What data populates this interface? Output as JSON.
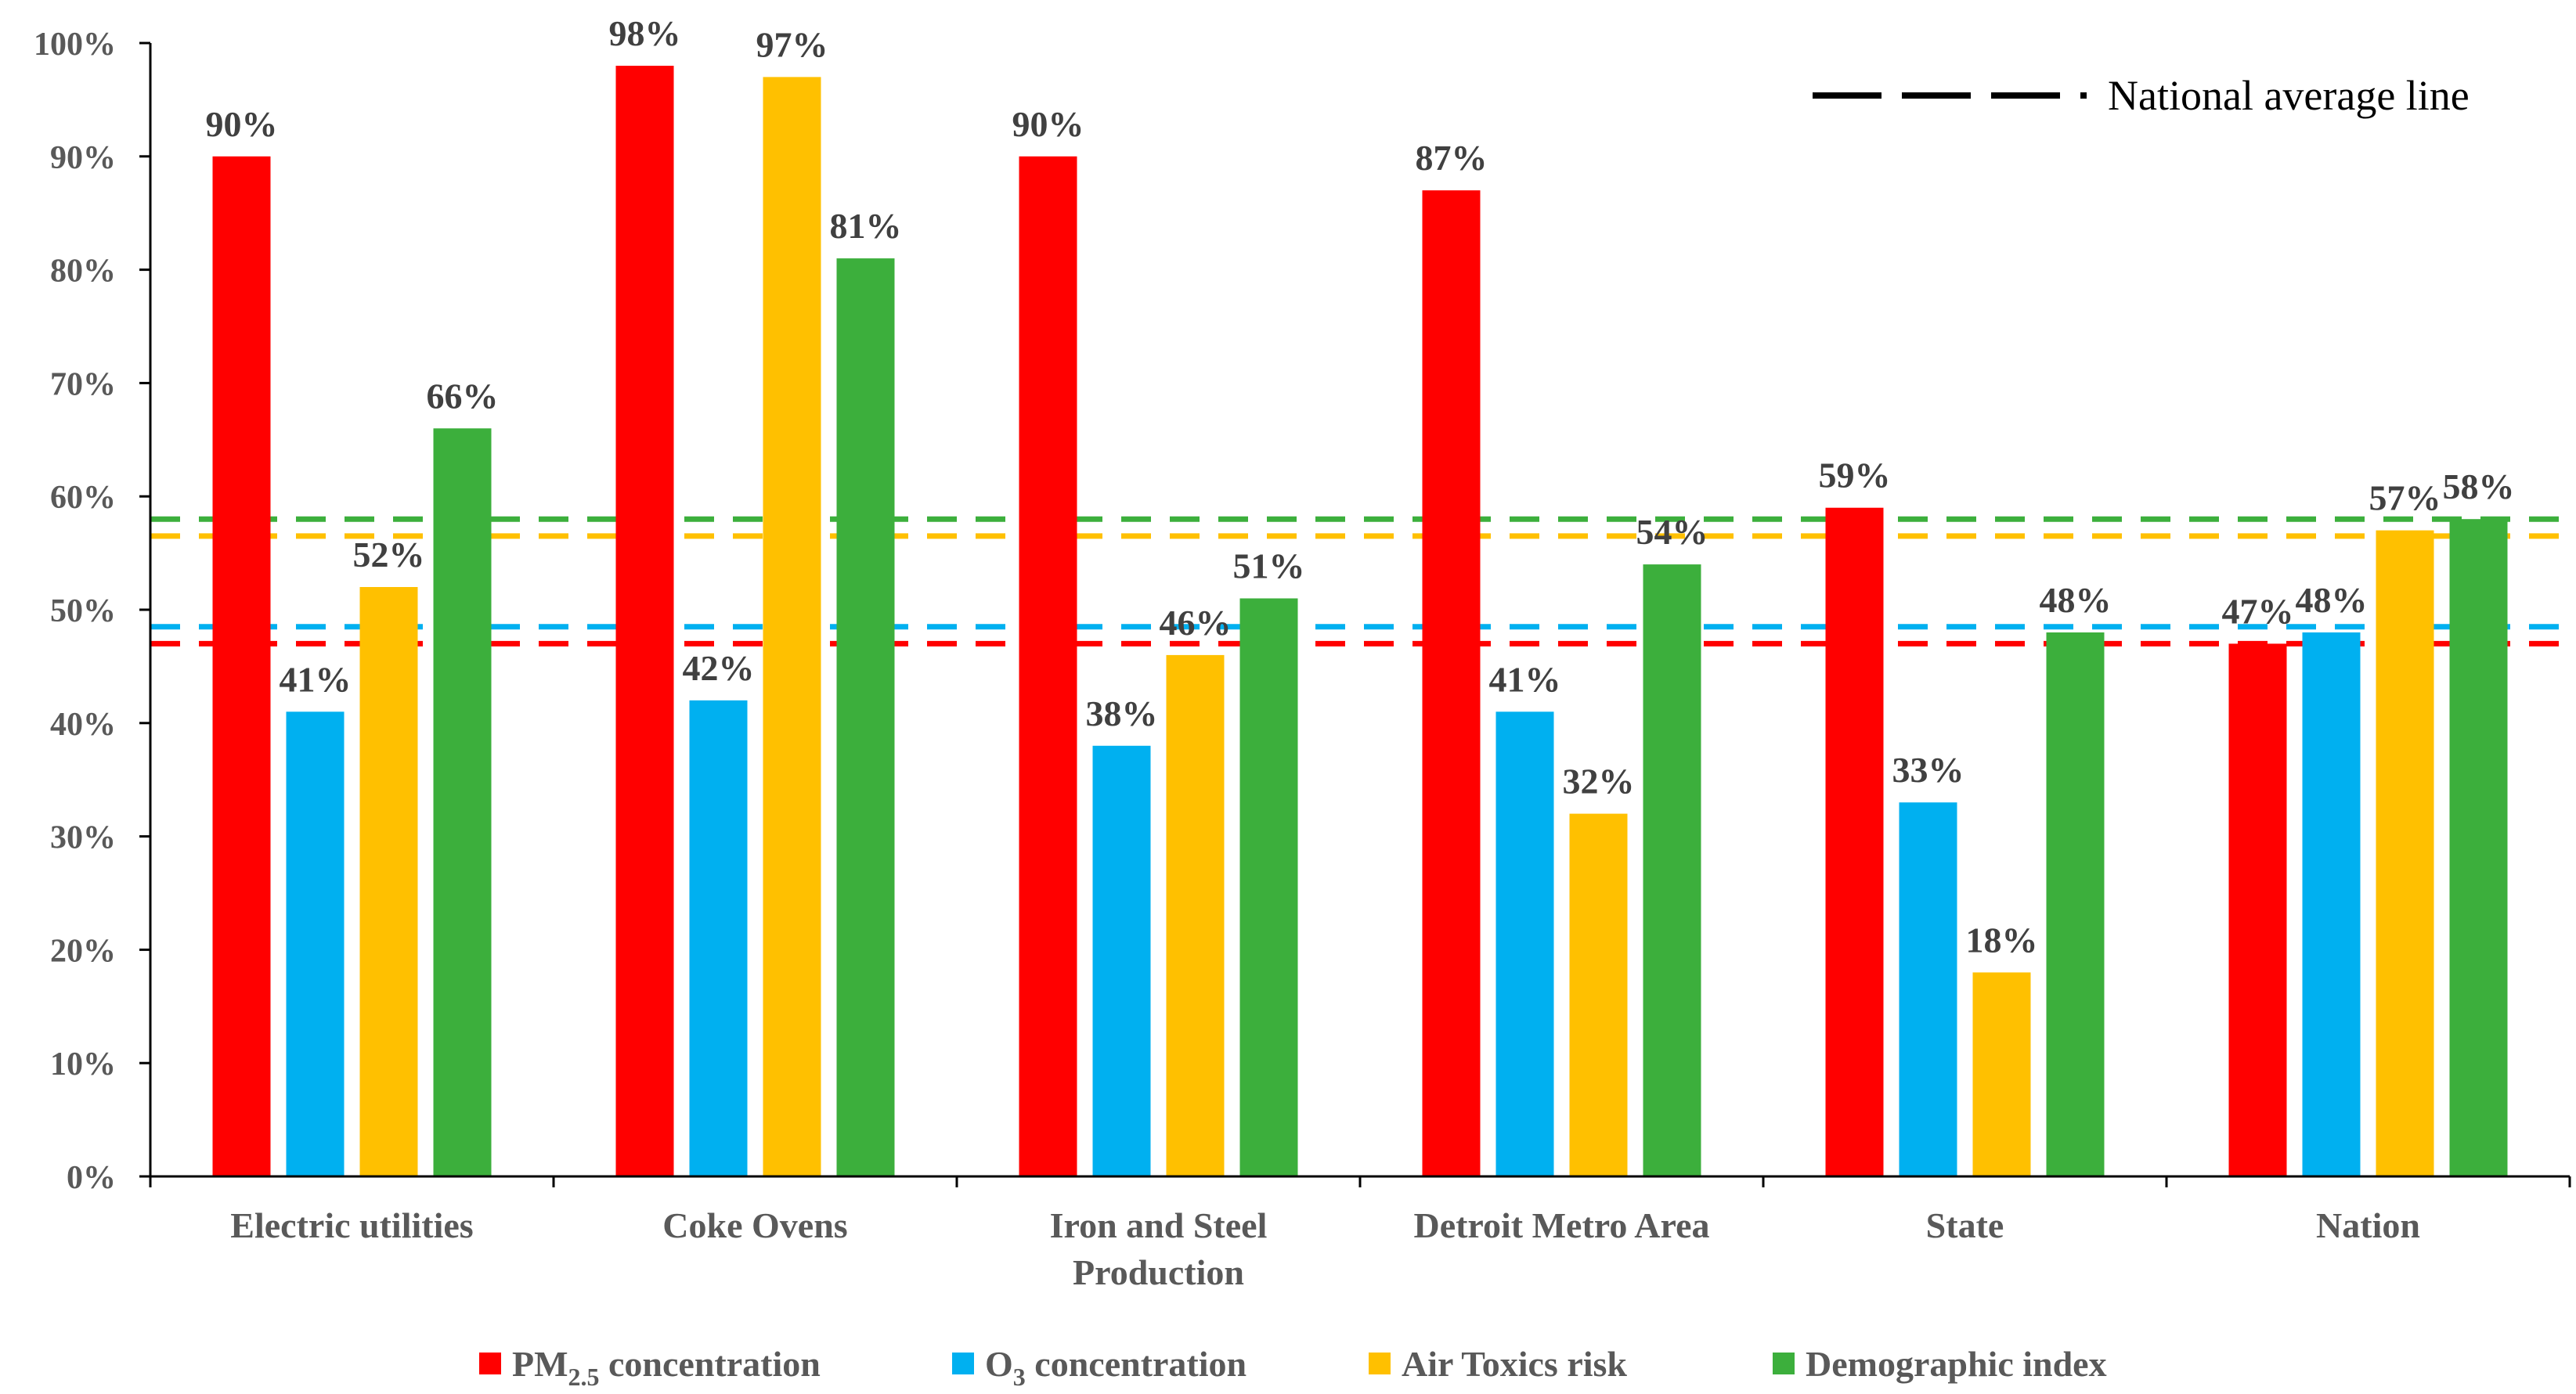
{
  "chart_data": {
    "type": "bar",
    "categories": [
      [
        "Electric utilities"
      ],
      [
        "Coke Ovens"
      ],
      [
        "Iron and Steel",
        "Production"
      ],
      [
        "Detroit Metro Area"
      ],
      [
        "State"
      ],
      [
        "Nation"
      ]
    ],
    "series": [
      {
        "name": "PM",
        "name_sub": "2.5",
        "name_rest": " concentration",
        "color": "#FF0000",
        "values": [
          90,
          98,
          90,
          87,
          59,
          47
        ],
        "labels": [
          "90%",
          "98%",
          "90%",
          "87%",
          "59%",
          "47%"
        ]
      },
      {
        "name": "O",
        "name_sub": "3",
        "name_rest": " concentration",
        "color": "#00B0F0",
        "values": [
          41,
          42,
          38,
          41,
          33,
          48
        ],
        "labels": [
          "41%",
          "42%",
          "38%",
          "41%",
          "33%",
          "48%"
        ]
      },
      {
        "name": "Air Toxics risk",
        "name_sub": "",
        "name_rest": "",
        "color": "#FFC000",
        "values": [
          52,
          97,
          46,
          32,
          18,
          57
        ],
        "labels": [
          "52%",
          "97%",
          "46%",
          "32%",
          "18%",
          "57%"
        ]
      },
      {
        "name": "Demographic index",
        "name_sub": "",
        "name_rest": "",
        "color": "#3CAF3C",
        "values": [
          66,
          81,
          51,
          54,
          48,
          58
        ],
        "labels": [
          "66%",
          "81%",
          "51%",
          "54%",
          "48%",
          "58%"
        ]
      }
    ],
    "reference_lines": [
      {
        "series": "PM2.5 concentration",
        "value": 47,
        "color": "#FF0000"
      },
      {
        "series": "O3 concentration",
        "value": 48.5,
        "color": "#00B0F0"
      },
      {
        "series": "Air Toxics risk",
        "value": 56.5,
        "color": "#FFC000"
      },
      {
        "series": "Demographic index",
        "value": 58,
        "color": "#3CAF3C"
      }
    ],
    "annotation": {
      "text": "National average line",
      "line_color": "#000000"
    },
    "y_ticks": [
      "0%",
      "10%",
      "20%",
      "30%",
      "40%",
      "50%",
      "60%",
      "70%",
      "80%",
      "90%",
      "100%"
    ],
    "ylim": [
      0,
      100
    ],
    "title": "",
    "xlabel": "",
    "ylabel": "",
    "grid": false,
    "legend_position": "bottom"
  }
}
